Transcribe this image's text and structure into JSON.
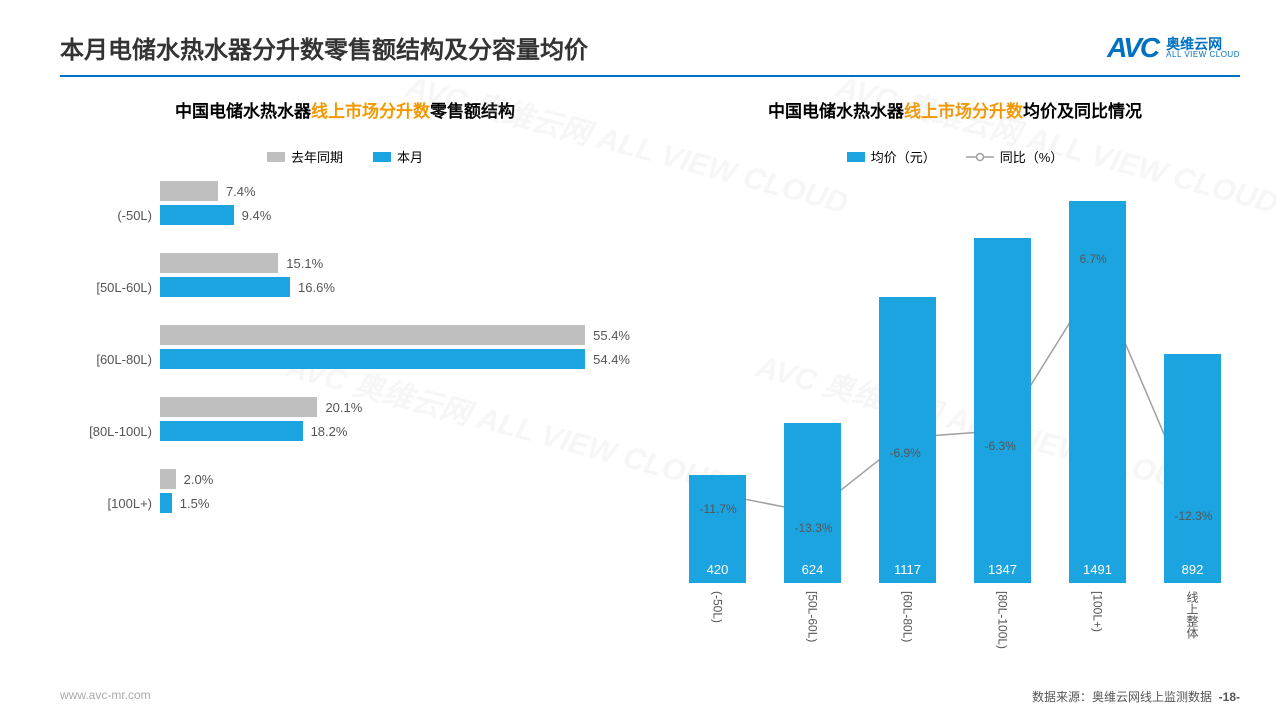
{
  "page_title": "本月电储水热水器分升数零售额结构及分容量均价",
  "logo": {
    "mark": "AVC",
    "cn": "奥维云网",
    "en": "ALL VIEW CLOUD"
  },
  "colors": {
    "primary": "#1ca4e0",
    "gray": "#bfbfbf",
    "line": "#a0a0a0",
    "orange": "#f39800",
    "title": "#333333"
  },
  "left_chart": {
    "type": "grouped-horizontal-bar",
    "title_pre": "中国电储水热水器",
    "title_orange": "线上市场分升数",
    "title_post": "零售额结构",
    "legend": [
      {
        "label": "去年同期",
        "color": "#bfbfbf"
      },
      {
        "label": "本月",
        "color": "#1ca4e0"
      }
    ],
    "xmax": 60,
    "categories": [
      {
        "name": "(-50L)",
        "prev": 7.4,
        "cur": 9.4
      },
      {
        "name": "[50L-60L)",
        "prev": 15.1,
        "cur": 16.6
      },
      {
        "name": "[60L-80L)",
        "prev": 55.4,
        "cur": 54.4
      },
      {
        "name": "[80L-100L)",
        "prev": 20.1,
        "cur": 18.2
      },
      {
        "name": "[100L+)",
        "prev": 2.0,
        "cur": 1.5
      }
    ]
  },
  "right_chart": {
    "type": "bar-line-combo",
    "title_pre": "中国电储水热水器",
    "title_orange": "线上市场分升数",
    "title_post": "均价及同比情况",
    "legend": [
      {
        "label": "均价（元）",
        "kind": "bar",
        "color": "#1ca4e0"
      },
      {
        "label": "同比（%）",
        "kind": "line",
        "color": "#a0a0a0"
      }
    ],
    "bar_ymax": 1600,
    "line_ymin": -20,
    "line_ymax": 15,
    "items": [
      {
        "cat": "(-50L)",
        "price": 420,
        "yoy": -11.7
      },
      {
        "cat": "[50L-60L)",
        "price": 624,
        "yoy": -13.3
      },
      {
        "cat": "[60L-80L)",
        "price": 1117,
        "yoy": -6.9
      },
      {
        "cat": "[80L-100L)",
        "price": 1347,
        "yoy": -6.3
      },
      {
        "cat": "[100L+)",
        "price": 1491,
        "yoy": 6.7
      },
      {
        "cat": "线上整体",
        "price": 892,
        "yoy": -12.3
      }
    ]
  },
  "footer": {
    "left": "www.avc-mr.com",
    "right_label": "数据来源：奥维云网线上监测数据",
    "page": "-18-"
  },
  "watermark": "AVC 奥维云网 ALL VIEW CLOUD"
}
